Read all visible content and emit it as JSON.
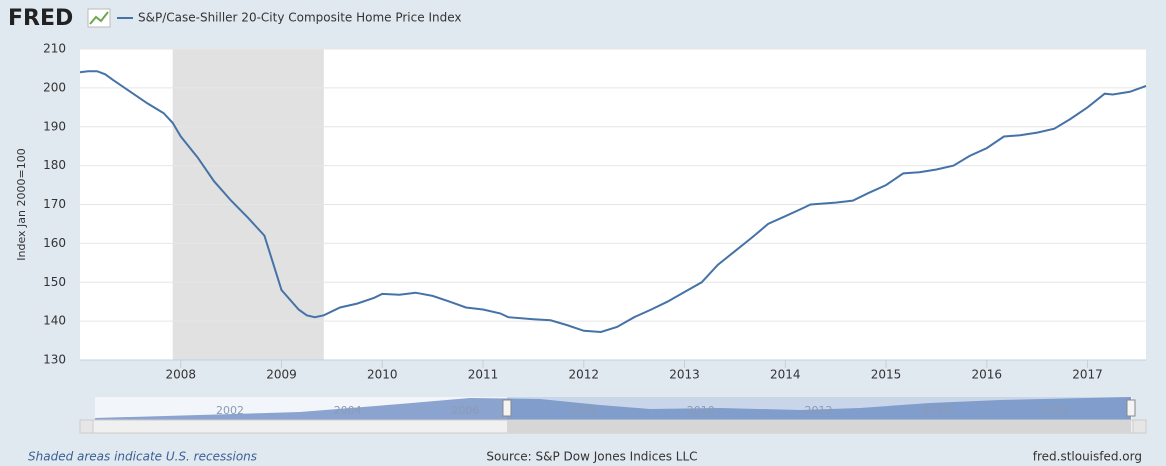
{
  "header": {
    "logo": "FRED"
  },
  "chart_data": {
    "type": "line",
    "ylabel": "Index Jan 2000=100",
    "xlim": [
      2007,
      2017.58
    ],
    "xticks": [
      2008,
      2009,
      2010,
      2011,
      2012,
      2013,
      2014,
      2015,
      2016,
      2017
    ],
    "ylim": [
      130,
      210
    ],
    "yticks": [
      130,
      140,
      150,
      160,
      170,
      180,
      190,
      200,
      210
    ],
    "grid": true,
    "recessions": [
      [
        2007.92,
        2009.42
      ]
    ],
    "recession_color": "#e1e1e1",
    "series": [
      {
        "name": "S&P/Case-Shiller 20-City Composite Home Price Index",
        "color": "#4572a7",
        "x": [
          2007.0,
          2007.08,
          2007.17,
          2007.25,
          2007.33,
          2007.5,
          2007.67,
          2007.83,
          2007.92,
          2008.0,
          2008.17,
          2008.33,
          2008.5,
          2008.67,
          2008.83,
          2009.0,
          2009.17,
          2009.25,
          2009.33,
          2009.42,
          2009.58,
          2009.75,
          2009.92,
          2010.0,
          2010.17,
          2010.33,
          2010.5,
          2010.67,
          2010.83,
          2011.0,
          2011.17,
          2011.25,
          2011.5,
          2011.67,
          2011.83,
          2012.0,
          2012.17,
          2012.33,
          2012.5,
          2012.67,
          2012.83,
          2013.0,
          2013.17,
          2013.33,
          2013.5,
          2013.67,
          2013.83,
          2014.0,
          2014.17,
          2014.25,
          2014.5,
          2014.67,
          2014.83,
          2015.0,
          2015.17,
          2015.33,
          2015.5,
          2015.67,
          2015.83,
          2016.0,
          2016.17,
          2016.33,
          2016.5,
          2016.67,
          2016.83,
          2017.0,
          2017.17,
          2017.25,
          2017.42,
          2017.58
        ],
        "values": [
          204,
          204.3,
          204.3,
          203.5,
          202,
          199,
          196,
          193.5,
          191,
          187.5,
          182,
          176,
          171,
          166.5,
          162,
          148,
          143,
          141.5,
          141,
          141.5,
          143.5,
          144.5,
          146,
          147,
          146.8,
          147.3,
          146.5,
          145,
          143.5,
          143,
          142,
          141,
          140.5,
          140.2,
          139,
          137.5,
          137.2,
          138.5,
          141,
          143,
          145,
          147.5,
          150,
          154.5,
          158,
          161.5,
          165,
          167,
          169,
          170,
          170.5,
          171,
          173,
          175,
          178,
          178.3,
          179,
          180,
          182.5,
          184.5,
          187.5,
          187.8,
          188.5,
          189.5,
          192,
          195,
          198.5,
          198.3,
          199,
          200.5
        ]
      }
    ]
  },
  "navigator": {
    "labels": [
      "2002",
      "2004",
      "2006",
      "2008",
      "2010",
      "2012",
      "2014",
      "2016"
    ]
  },
  "footer": {
    "note": "Shaded areas indicate U.S. recessions",
    "source": "Source: S&P Dow Jones Indices LLC",
    "site": "fred.stlouisfed.org"
  }
}
